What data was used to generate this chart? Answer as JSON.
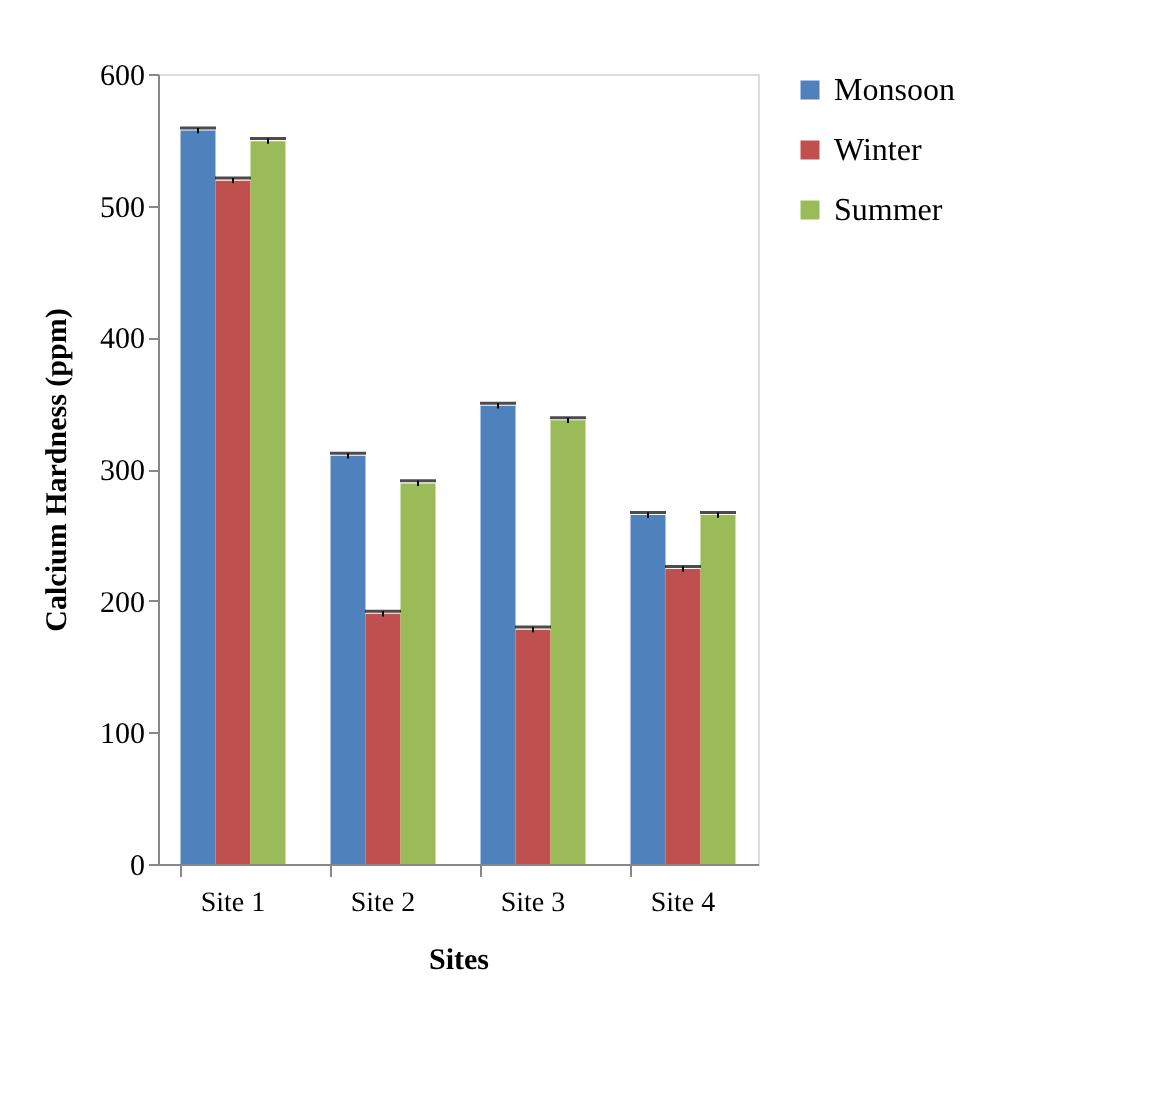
{
  "chart_data": {
    "type": "bar",
    "xlabel": "Sites",
    "ylabel": "Calcium Hardness (ppm)",
    "categories": [
      "Site 1",
      "Site 2",
      "Site 3",
      "Site 4"
    ],
    "series": [
      {
        "name": "Monsoon",
        "color": "#4f81bd",
        "values": [
          557,
          310,
          348,
          265
        ],
        "errors": [
          2,
          2,
          2,
          2
        ]
      },
      {
        "name": "Winter",
        "color": "#c0504d",
        "values": [
          519,
          190,
          178,
          224
        ],
        "errors": [
          2,
          2,
          2,
          2
        ]
      },
      {
        "name": "Summer",
        "color": "#9bbb59",
        "values": [
          549,
          289,
          337,
          265
        ],
        "errors": [
          2,
          2,
          2,
          2
        ]
      }
    ],
    "ylim": [
      0,
      600
    ],
    "yticks": [
      0,
      100,
      200,
      300,
      400,
      500,
      600
    ],
    "grid": false,
    "legend": "right"
  }
}
